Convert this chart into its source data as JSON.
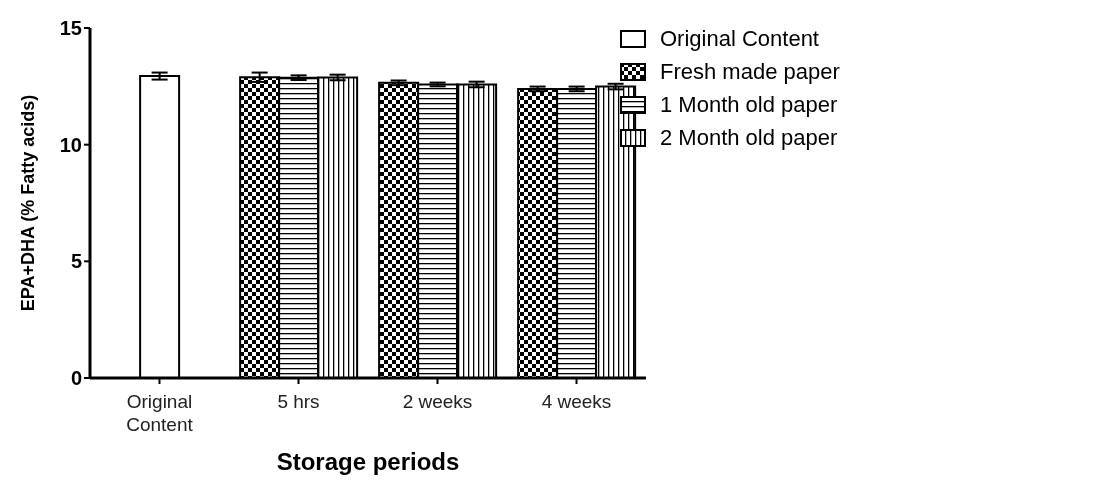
{
  "chart_data": {
    "type": "bar",
    "xlabel": "Storage periods",
    "ylabel": "EPA+DHA (% Fatty acids)",
    "categories": [
      "Original\nContent",
      "5 hrs",
      "2 weeks",
      "4 weeks"
    ],
    "series": [
      {
        "name": "Original Content",
        "color": "#ffffff",
        "values": [
          12.94,
          null,
          null,
          null
        ],
        "errors": [
          0.15,
          null,
          null,
          null
        ]
      },
      {
        "name": "Fresh made paper",
        "color": "#000000",
        "values": [
          null,
          12.89,
          12.65,
          12.39
        ],
        "errors": [
          null,
          0.2,
          0.1,
          0.1
        ]
      },
      {
        "name": "1 Month old paper",
        "color": "#000000",
        "values": [
          null,
          12.87,
          12.58,
          12.39
        ],
        "errors": [
          null,
          0.1,
          0.08,
          0.1
        ]
      },
      {
        "name": "2 Month old paper",
        "color": "#000000",
        "values": [
          null,
          12.88,
          12.58,
          12.49
        ],
        "errors": [
          null,
          0.12,
          0.12,
          0.12
        ]
      }
    ],
    "ylim": [
      0,
      15
    ],
    "yticks": [
      0,
      5,
      10,
      15
    ],
    "grid": false,
    "legend": "top right"
  }
}
